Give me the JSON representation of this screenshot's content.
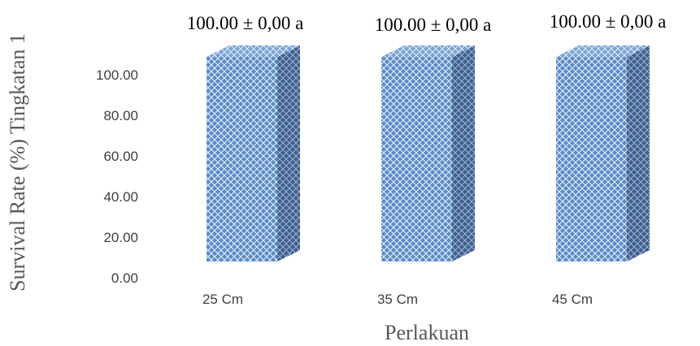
{
  "chart_data": {
    "type": "bar",
    "style": "3d-column",
    "categories": [
      "25 Cm",
      "35 Cm",
      "45 Cm"
    ],
    "values": [
      100.0,
      100.0,
      100.0
    ],
    "data_labels": [
      "100.00 ± 0,00 a",
      "100.00 ± 0,00 a",
      "100.00 ± 0,00 a"
    ],
    "xlabel": "Perlakuan",
    "ylabel": "Survival Rate (%) Tingkatan 1",
    "yticks": [
      "0.00",
      "20.00",
      "40.00",
      "60.00",
      "80.00",
      "100.00"
    ],
    "ylim": [
      0,
      100
    ],
    "grid": false,
    "legend": "none",
    "colors": {
      "front": "#5b8bc7",
      "side": "#3e5f8f",
      "top": "#7aa3d6",
      "pattern": "#ffffff"
    }
  }
}
